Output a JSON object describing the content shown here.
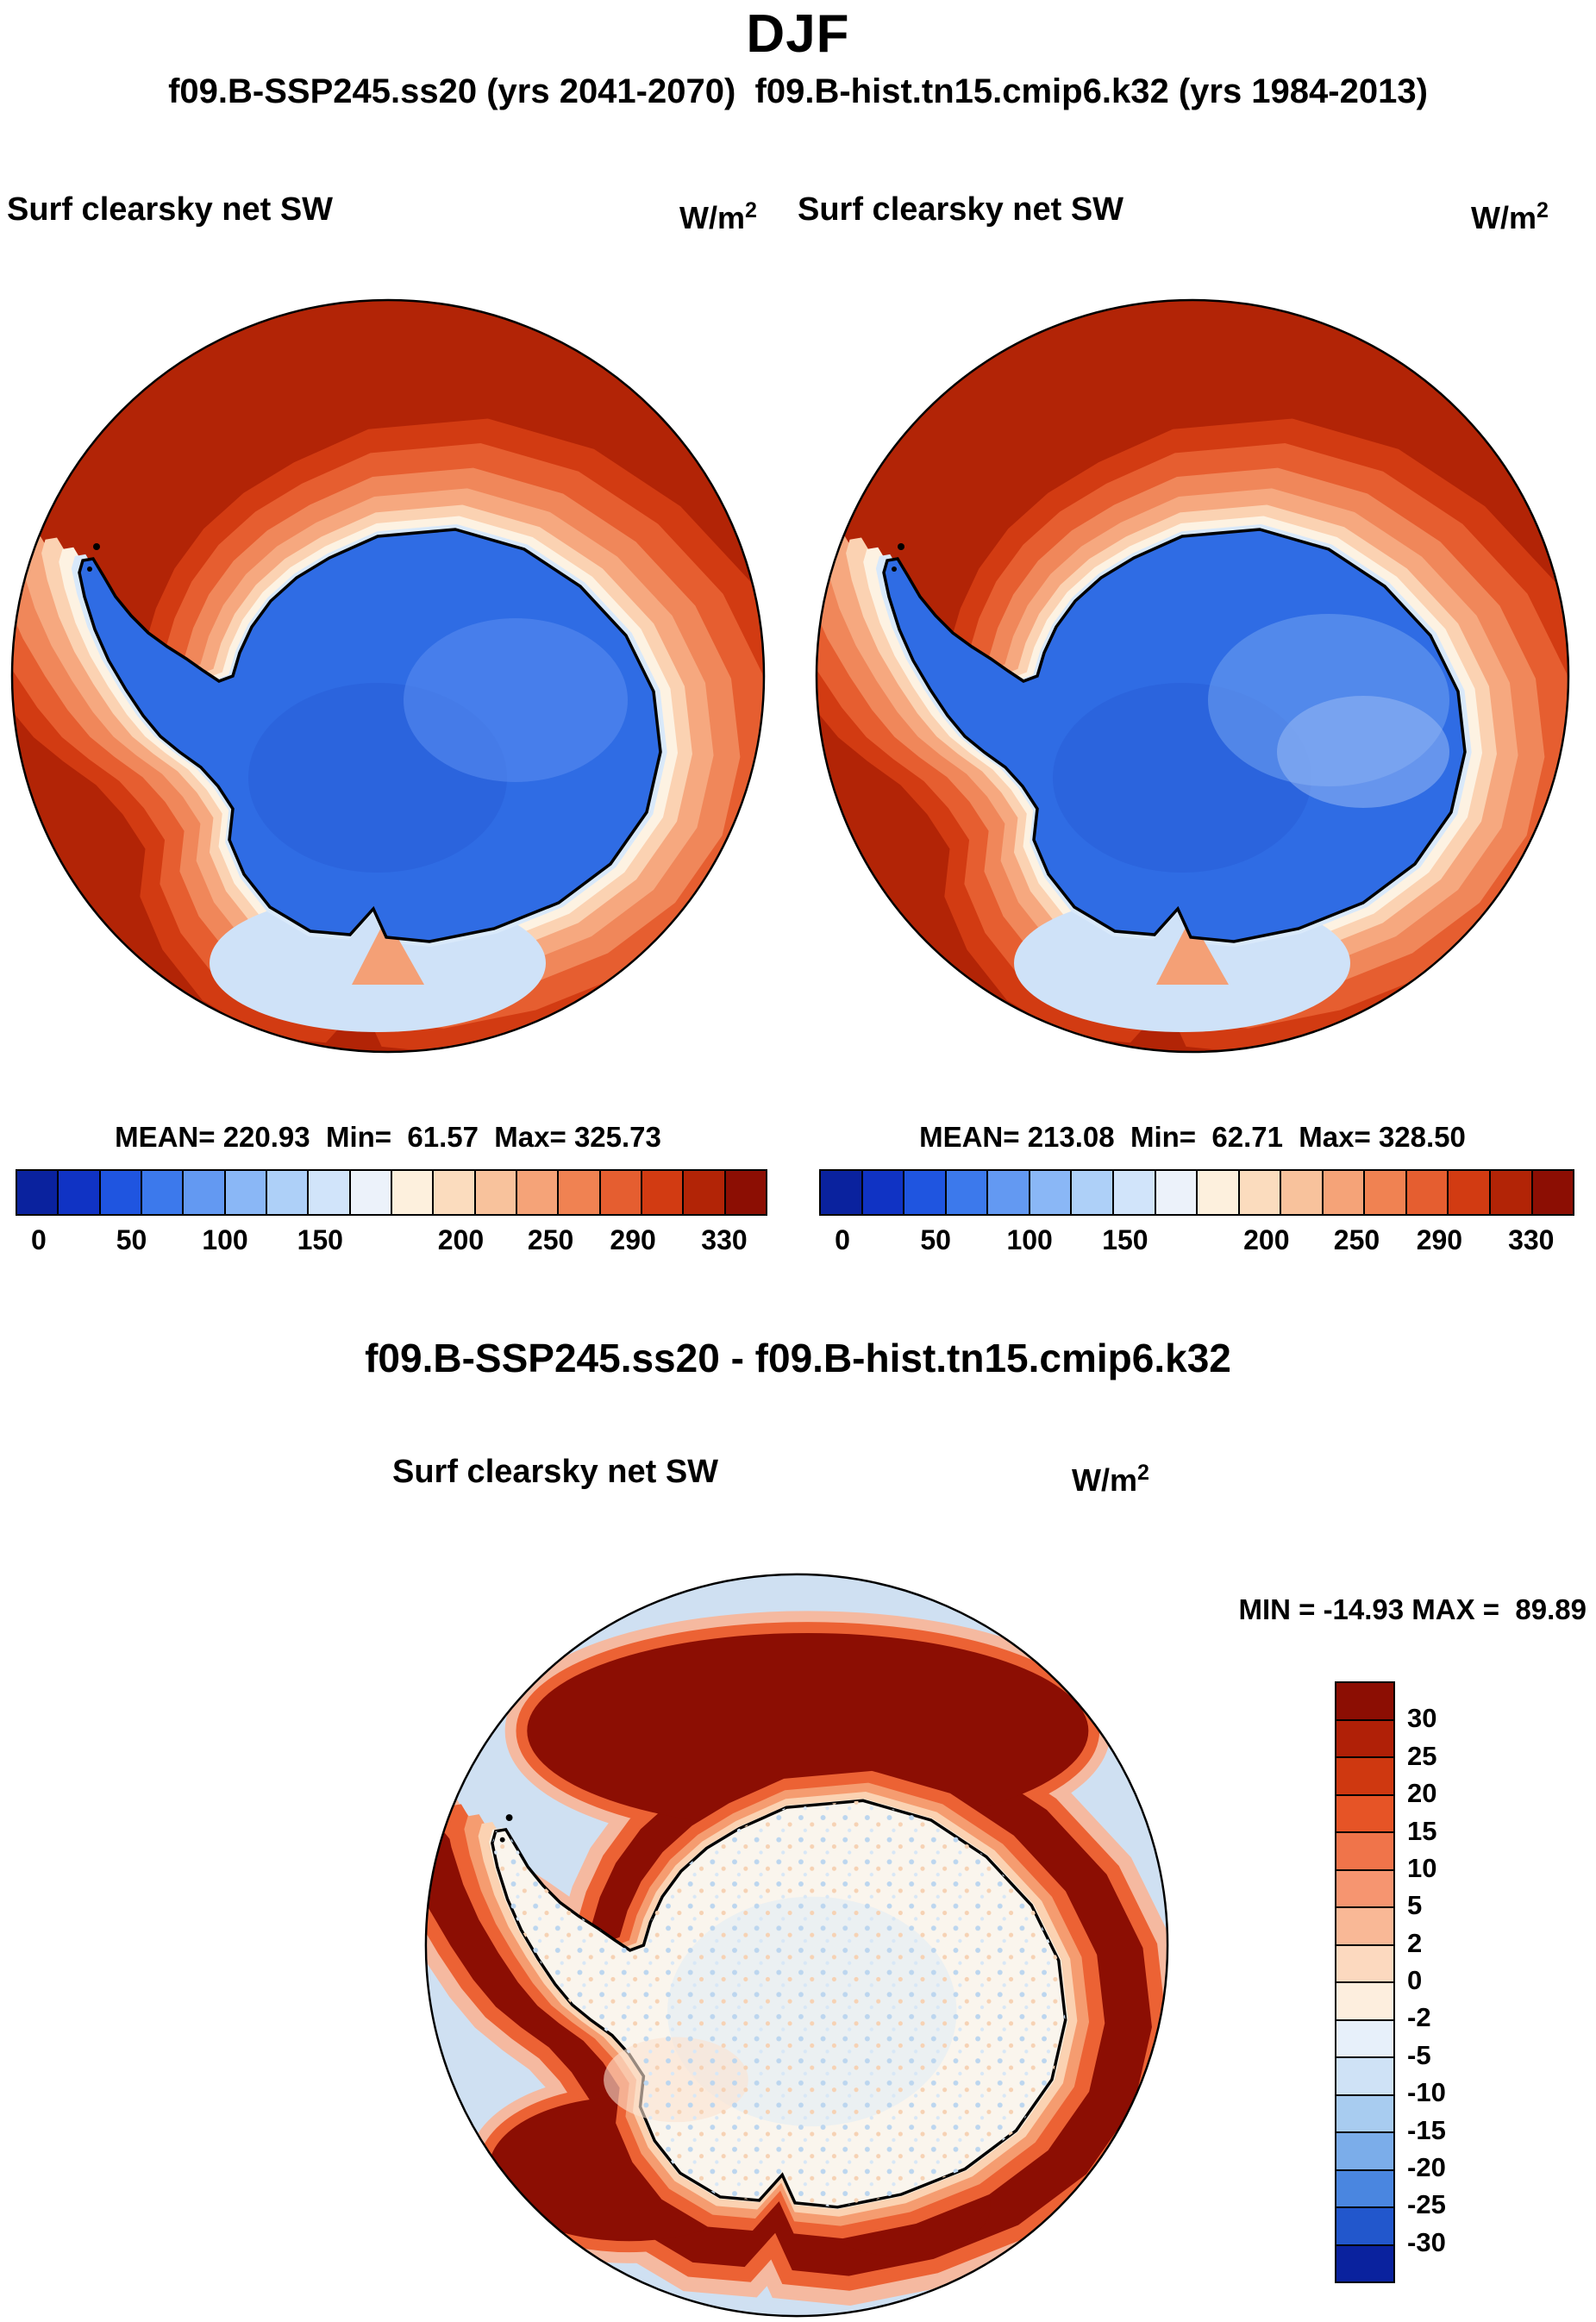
{
  "header": {
    "season_title": "DJF",
    "runs_line": "f09.B-SSP245.ss20 (yrs 2041-2070)  f09.B-hist.tn15.cmip6.k32 (yrs 1984-2013)"
  },
  "diff_header": "f09.B-SSP245.ss20 - f09.B-hist.tn15.cmip6.k32",
  "panels": {
    "left": {
      "field": "Surf clearsky net SW",
      "units_base": "W/m",
      "units_sup": "2",
      "stats": "MEAN= 220.93  Min=  61.57  Max= 325.73"
    },
    "right": {
      "field": "Surf clearsky net SW",
      "units_base": "W/m",
      "units_sup": "2",
      "stats": "MEAN= 213.08  Min=  62.71  Max= 328.50"
    },
    "diff": {
      "field": "Surf clearsky net SW",
      "units_base": "W/m",
      "units_sup": "2",
      "stats": "MIN = -14.93 MAX =  89.89"
    }
  },
  "colorbar_main": {
    "colors": [
      "#0a229e",
      "#1033c4",
      "#1f55e0",
      "#3c79ec",
      "#6399f2",
      "#8ab7f6",
      "#aed0f8",
      "#d1e4fa",
      "#ecf2fa",
      "#fdf0dd",
      "#fbdcbe",
      "#f8c29c",
      "#f5a378",
      "#f08252",
      "#e55e30",
      "#d23b12",
      "#b22406",
      "#8c0e03"
    ],
    "ticks": [
      {
        "label": "0",
        "pos": 0.031
      },
      {
        "label": "50",
        "pos": 0.155
      },
      {
        "label": "100",
        "pos": 0.28
      },
      {
        "label": "150",
        "pos": 0.407
      },
      {
        "label": "200",
        "pos": 0.595
      },
      {
        "label": "250",
        "pos": 0.715
      },
      {
        "label": "290",
        "pos": 0.825
      },
      {
        "label": "330",
        "pos": 0.947
      }
    ]
  },
  "colorbar_diff": {
    "colors": [
      "#8c0e03",
      "#b02007",
      "#cf3810",
      "#e65426",
      "#f0744a",
      "#f69570",
      "#f9b896",
      "#fcd9bf",
      "#fdeede",
      "#e7f0fa",
      "#cfe2f6",
      "#a8ccf0",
      "#7badea",
      "#4a86e0",
      "#2257cc",
      "#0a229e"
    ],
    "labels": [
      "30",
      "25",
      "20",
      "15",
      "10",
      "5",
      "2",
      "0",
      "-2",
      "-5",
      "-10",
      "-15",
      "-20",
      "-25",
      "-30"
    ]
  },
  "map_colors": {
    "ocean_high": "#b22406",
    "continent_low": "#2f6ce4",
    "diff_ocean": "#cfe0f2",
    "diff_ring": "#8c0e03",
    "coastline": "#000000"
  },
  "chart_data": [
    {
      "type": "heatmap",
      "subtype": "south-polar-stereographic-map",
      "title": "Surf clearsky net SW",
      "units": "W/m2",
      "season": "DJF",
      "dataset": "f09.B-SSP245.ss20",
      "period": "yrs 2041-2070",
      "stats": {
        "mean": 220.93,
        "min": 61.57,
        "max": 325.73
      },
      "colorbar_ticks": [
        0,
        50,
        100,
        150,
        200,
        250,
        290,
        330
      ],
      "legend_position": "bottom",
      "pattern": "values ~300-330 W/m2 (dark red) over the open Southern Ocean, decreasing through orange/cream bands toward the coast; ~60-130 W/m2 (blue) over the Antarctic continent"
    },
    {
      "type": "heatmap",
      "subtype": "south-polar-stereographic-map",
      "title": "Surf clearsky net SW",
      "units": "W/m2",
      "season": "DJF",
      "dataset": "f09.B-hist.tn15.cmip6.k32",
      "period": "yrs 1984-2013",
      "stats": {
        "mean": 213.08,
        "min": 62.71,
        "max": 328.5
      },
      "colorbar_ticks": [
        0,
        50,
        100,
        150,
        200,
        250,
        290,
        330
      ],
      "legend_position": "bottom",
      "pattern": "same spatial structure as the SSP245 panel: dark-red open ocean, blue continent with slightly lighter interior patches"
    },
    {
      "type": "heatmap",
      "subtype": "south-polar-stereographic-map",
      "title": "Surf clearsky net SW",
      "units": "W/m2",
      "season": "DJF",
      "dataset": "f09.B-SSP245.ss20 - f09.B-hist.tn15.cmip6.k32",
      "stats": {
        "min": -14.93,
        "max": 89.89
      },
      "colorbar_ticks": [
        30,
        25,
        20,
        15,
        10,
        5,
        2,
        0,
        -2,
        -5,
        -10,
        -15,
        -20,
        -25,
        -30
      ],
      "legend_position": "right",
      "pattern": "near-zero (white, speckled) over the continent; strong positive ring >30 W/m2 (dark red) over the coastal ocean / sea-ice zone, thickest north of the continent; weakly positive to near-zero (pale blue) over the open ocean"
    }
  ]
}
